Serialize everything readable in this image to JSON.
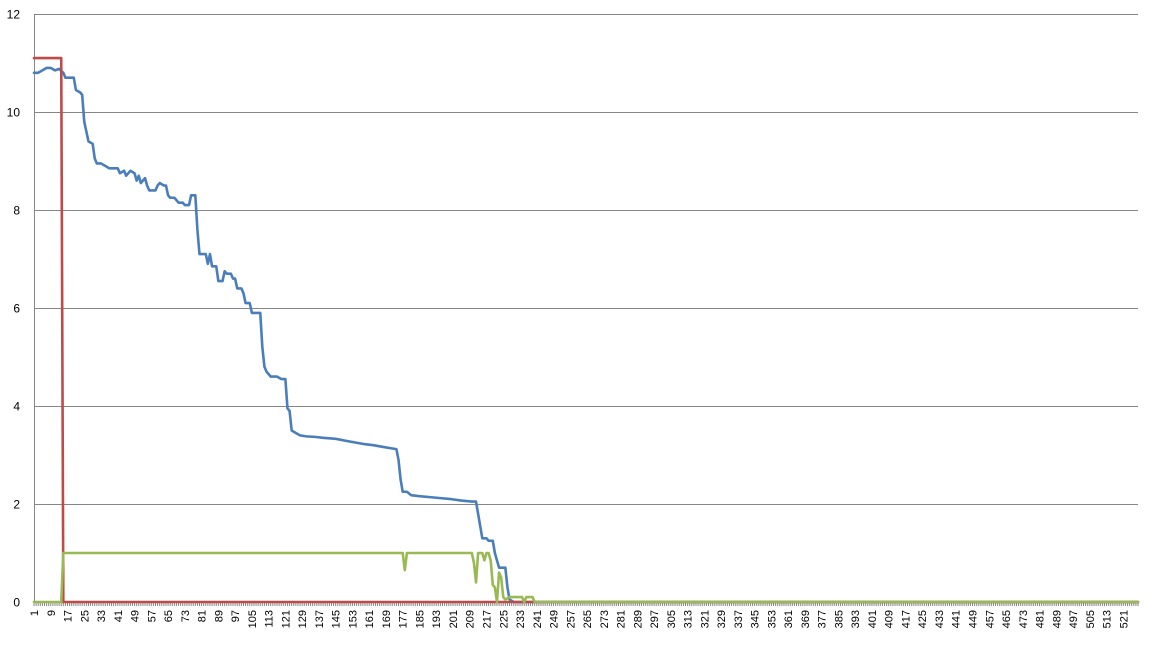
{
  "chart_data": {
    "type": "line",
    "title": "",
    "xlabel": "",
    "ylabel": "",
    "ylim": [
      0,
      12
    ],
    "yticks": [
      0,
      2,
      4,
      6,
      8,
      10,
      12
    ],
    "xlim": [
      1,
      528
    ],
    "xtick_labels": [
      "1",
      "9",
      "17",
      "25",
      "33",
      "41",
      "49",
      "57",
      "65",
      "73",
      "81",
      "89",
      "97",
      "105",
      "113",
      "121",
      "129",
      "137",
      "145",
      "153",
      "161",
      "169",
      "177",
      "185",
      "193",
      "201",
      "209",
      "217",
      "225",
      "233",
      "241",
      "249",
      "257",
      "265",
      "273",
      "281",
      "289",
      "297",
      "305",
      "313",
      "321",
      "329",
      "337",
      "345",
      "353",
      "361",
      "369",
      "377",
      "385",
      "393",
      "401",
      "409",
      "417",
      "425",
      "433",
      "441",
      "449",
      "457",
      "465",
      "473",
      "481",
      "489",
      "497",
      "505",
      "513",
      "521"
    ],
    "grid": "horizontal",
    "legend": "none",
    "series": [
      {
        "color": "#4A7EBB",
        "points": [
          [
            1,
            10.8
          ],
          [
            3,
            10.8
          ],
          [
            5,
            10.85
          ],
          [
            7,
            10.9
          ],
          [
            9,
            10.9
          ],
          [
            11,
            10.85
          ],
          [
            13,
            10.88
          ],
          [
            15,
            10.8
          ],
          [
            16,
            10.7
          ],
          [
            20,
            10.7
          ],
          [
            21,
            10.45
          ],
          [
            23,
            10.4
          ],
          [
            24,
            10.35
          ],
          [
            25,
            9.8
          ],
          [
            26,
            9.6
          ],
          [
            27,
            9.4
          ],
          [
            29,
            9.35
          ],
          [
            30,
            9.05
          ],
          [
            31,
            8.95
          ],
          [
            33,
            8.95
          ],
          [
            35,
            8.9
          ],
          [
            37,
            8.85
          ],
          [
            41,
            8.85
          ],
          [
            42,
            8.75
          ],
          [
            44,
            8.8
          ],
          [
            45,
            8.7
          ],
          [
            47,
            8.8
          ],
          [
            49,
            8.75
          ],
          [
            50,
            8.6
          ],
          [
            51,
            8.7
          ],
          [
            52,
            8.55
          ],
          [
            54,
            8.65
          ],
          [
            55,
            8.5
          ],
          [
            56,
            8.4
          ],
          [
            59,
            8.4
          ],
          [
            60,
            8.5
          ],
          [
            61,
            8.55
          ],
          [
            63,
            8.5
          ],
          [
            64,
            8.5
          ],
          [
            65,
            8.3
          ],
          [
            66,
            8.25
          ],
          [
            68,
            8.25
          ],
          [
            69,
            8.2
          ],
          [
            70,
            8.15
          ],
          [
            72,
            8.15
          ],
          [
            73,
            8.1
          ],
          [
            75,
            8.1
          ],
          [
            76,
            8.3
          ],
          [
            78,
            8.3
          ],
          [
            79,
            7.6
          ],
          [
            80,
            7.1
          ],
          [
            83,
            7.1
          ],
          [
            84,
            6.9
          ],
          [
            85,
            7.1
          ],
          [
            86,
            6.85
          ],
          [
            88,
            6.85
          ],
          [
            89,
            6.55
          ],
          [
            91,
            6.55
          ],
          [
            92,
            6.75
          ],
          [
            93,
            6.7
          ],
          [
            95,
            6.7
          ],
          [
            96,
            6.6
          ],
          [
            97,
            6.6
          ],
          [
            98,
            6.4
          ],
          [
            100,
            6.4
          ],
          [
            101,
            6.3
          ],
          [
            102,
            6.1
          ],
          [
            104,
            6.1
          ],
          [
            105,
            5.9
          ],
          [
            107,
            5.9
          ],
          [
            109,
            5.9
          ],
          [
            110,
            5.2
          ],
          [
            111,
            4.8
          ],
          [
            112,
            4.7
          ],
          [
            113,
            4.65
          ],
          [
            114,
            4.6
          ],
          [
            117,
            4.6
          ],
          [
            119,
            4.55
          ],
          [
            121,
            4.55
          ],
          [
            122,
            3.95
          ],
          [
            123,
            3.9
          ],
          [
            124,
            3.5
          ],
          [
            126,
            3.45
          ],
          [
            128,
            3.4
          ],
          [
            131,
            3.38
          ],
          [
            135,
            3.37
          ],
          [
            139,
            3.35
          ],
          [
            145,
            3.33
          ],
          [
            151,
            3.28
          ],
          [
            155,
            3.25
          ],
          [
            159,
            3.22
          ],
          [
            163,
            3.2
          ],
          [
            167,
            3.17
          ],
          [
            171,
            3.14
          ],
          [
            174,
            3.12
          ],
          [
            175,
            2.9
          ],
          [
            176,
            2.5
          ],
          [
            177,
            2.25
          ],
          [
            179,
            2.25
          ],
          [
            181,
            2.18
          ],
          [
            185,
            2.16
          ],
          [
            190,
            2.14
          ],
          [
            195,
            2.12
          ],
          [
            200,
            2.1
          ],
          [
            205,
            2.07
          ],
          [
            210,
            2.05
          ],
          [
            212,
            2.05
          ],
          [
            213,
            1.8
          ],
          [
            214,
            1.55
          ],
          [
            215,
            1.3
          ],
          [
            217,
            1.3
          ],
          [
            218,
            1.25
          ],
          [
            220,
            1.25
          ],
          [
            221,
            1.0
          ],
          [
            222,
            0.85
          ],
          [
            223,
            0.7
          ],
          [
            226,
            0.7
          ],
          [
            227,
            0.3
          ],
          [
            228,
            0.05
          ],
          [
            230,
            0
          ],
          [
            528,
            0
          ]
        ]
      },
      {
        "color": "#BE4B48",
        "points": [
          [
            1,
            11.1
          ],
          [
            14,
            11.1
          ],
          [
            15,
            0
          ],
          [
            528,
            0
          ]
        ]
      },
      {
        "color": "#98B954",
        "points": [
          [
            1,
            0
          ],
          [
            14,
            0
          ],
          [
            15,
            1.0
          ],
          [
            177,
            1.0
          ],
          [
            178,
            0.65
          ],
          [
            179,
            1.0
          ],
          [
            210,
            1.0
          ],
          [
            211,
            0.8
          ],
          [
            212,
            0.4
          ],
          [
            213,
            1.0
          ],
          [
            215,
            1.0
          ],
          [
            216,
            0.85
          ],
          [
            217,
            1.0
          ],
          [
            218,
            1.0
          ],
          [
            219,
            0.85
          ],
          [
            220,
            0.35
          ],
          [
            221,
            0.3
          ],
          [
            222,
            0
          ],
          [
            223,
            0.6
          ],
          [
            224,
            0.5
          ],
          [
            225,
            0.1
          ],
          [
            226,
            0.05
          ],
          [
            228,
            0.1
          ],
          [
            234,
            0.1
          ],
          [
            235,
            0
          ],
          [
            236,
            0.1
          ],
          [
            239,
            0.1
          ],
          [
            240,
            0
          ],
          [
            528,
            0
          ]
        ]
      }
    ]
  }
}
